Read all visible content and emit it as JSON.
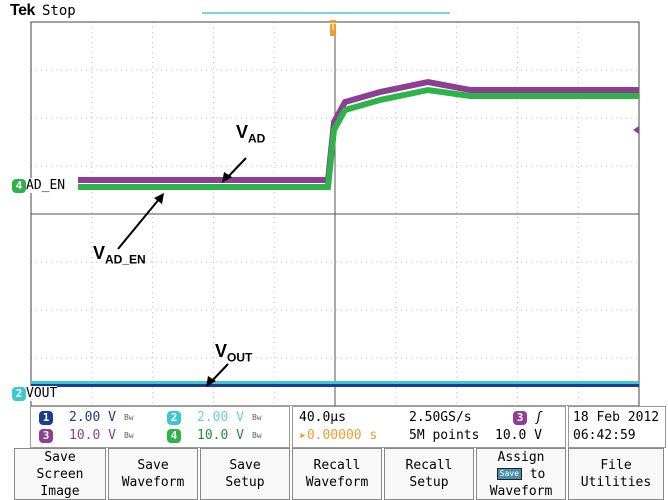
{
  "header": {
    "brand": "Tek",
    "status": "Stop"
  },
  "traces": [
    {
      "id": "1",
      "color": "#1a3d8f"
    },
    {
      "id": "2",
      "color": "#3fc7d1"
    },
    {
      "id": "3",
      "color": "#8e3e93"
    },
    {
      "id": "4",
      "color": "#2db34a"
    }
  ],
  "labels": {
    "ch4": "AD_EN",
    "ch2": "VOUT"
  },
  "annotations": {
    "vad_main": "V",
    "vad_sub": "AD",
    "vaden_main": "V",
    "vaden_sub": "AD_EN",
    "vout_main": "V",
    "vout_sub": "OUT"
  },
  "channels": [
    {
      "num": "1",
      "scale": "2.00 V",
      "color": "#1a3d8f",
      "text_color": "#1a3d8f"
    },
    {
      "num": "2",
      "scale": "2.00 V",
      "color": "#3fc7d1",
      "text_color": "#6fcfd6"
    },
    {
      "num": "3",
      "scale": "10.0 V",
      "color": "#8e3e93",
      "text_color": "#8e3e93"
    },
    {
      "num": "4",
      "scale": "10.0 V",
      "color": "#2db34a",
      "text_color": "#2a8a3a"
    }
  ],
  "bw_mark": "Bw",
  "acq": {
    "timebase": "40.0µs",
    "sample_rate": "2.50GS/s",
    "record_length": "5M points",
    "position": "0.00000 s"
  },
  "trigger": {
    "source": "3",
    "slope": "ʃ",
    "level": "10.0 V"
  },
  "datetime": {
    "date": "18 Feb  2012",
    "time": "06:42:59"
  },
  "menu": [
    {
      "line1": "Save",
      "line2": "Screen Image"
    },
    {
      "line1": "Save",
      "line2": "Waveform"
    },
    {
      "line1": "Save",
      "line2": "Setup"
    },
    {
      "line1": "Recall",
      "line2": "Waveform"
    },
    {
      "line1": "Recall",
      "line2": "Setup"
    },
    {
      "line1": "Assign",
      "mid": "Save",
      "mid_suffix": "to",
      "line3": "Waveform"
    },
    {
      "line1": "File",
      "line2": "Utilities"
    }
  ]
}
